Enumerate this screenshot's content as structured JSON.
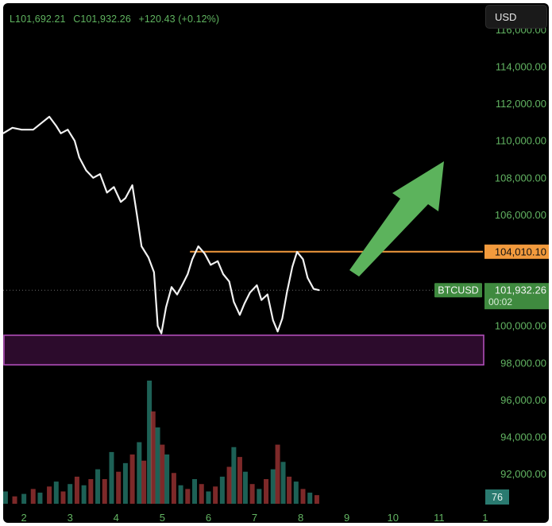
{
  "header": {
    "low": "L101,692.21",
    "close": "C101,932.26",
    "change": "+120.43 (+0.12%)"
  },
  "currency_button": "USD",
  "colors": {
    "background": "#000000",
    "price_line": "#f2f2f2",
    "axis_text": "#62b462",
    "resistance": "#f29a3d",
    "support_zone_fill": "#2c0b2c",
    "support_zone_border": "#b04db8",
    "arrow": "#5cb35c",
    "volume_up": "#2a8a7a",
    "volume_down": "#b23a3a"
  },
  "chart_data": {
    "type": "line",
    "symbol": "BTCUSD",
    "y_axis": {
      "min": 90400,
      "max": 117000,
      "ticks": [
        116000,
        114000,
        112000,
        110000,
        108000,
        106000,
        100000,
        98000,
        96000,
        94000,
        92000
      ],
      "tick_labels": [
        "116,000.00",
        "114,000.00",
        "112,000.00",
        "110,000.00",
        "108,000.00",
        "106,000.00",
        "100,000.00",
        "98,000.00",
        "96,000.00",
        "94,000.00",
        "92,000.00"
      ]
    },
    "x_axis": {
      "min": 1.55,
      "max": 11.95,
      "ticks": [
        2,
        3,
        4,
        5,
        6,
        7,
        8,
        9,
        10,
        11,
        1
      ],
      "tick_positions": [
        2,
        3,
        4,
        5,
        6,
        7,
        8,
        9,
        10,
        11,
        12
      ]
    },
    "price": [
      [
        1.55,
        110400
      ],
      [
        1.75,
        110700
      ],
      [
        1.95,
        110600
      ],
      [
        2.2,
        110600
      ],
      [
        2.35,
        110900
      ],
      [
        2.55,
        111300
      ],
      [
        2.7,
        110800
      ],
      [
        2.8,
        110400
      ],
      [
        2.95,
        110600
      ],
      [
        3.1,
        110000
      ],
      [
        3.2,
        109100
      ],
      [
        3.35,
        108400
      ],
      [
        3.5,
        108000
      ],
      [
        3.65,
        108200
      ],
      [
        3.8,
        107200
      ],
      [
        3.95,
        107500
      ],
      [
        4.1,
        106700
      ],
      [
        4.2,
        106900
      ],
      [
        4.35,
        107600
      ],
      [
        4.45,
        106000
      ],
      [
        4.55,
        104300
      ],
      [
        4.7,
        103700
      ],
      [
        4.82,
        102900
      ],
      [
        4.9,
        100000
      ],
      [
        4.98,
        99600
      ],
      [
        5.08,
        101000
      ],
      [
        5.2,
        102100
      ],
      [
        5.32,
        101700
      ],
      [
        5.45,
        102300
      ],
      [
        5.55,
        102800
      ],
      [
        5.65,
        103600
      ],
      [
        5.78,
        104300
      ],
      [
        5.92,
        103900
      ],
      [
        6.05,
        103300
      ],
      [
        6.2,
        103500
      ],
      [
        6.32,
        102800
      ],
      [
        6.45,
        102400
      ],
      [
        6.55,
        101300
      ],
      [
        6.68,
        100600
      ],
      [
        6.78,
        101200
      ],
      [
        6.9,
        101800
      ],
      [
        7.05,
        102200
      ],
      [
        7.15,
        101400
      ],
      [
        7.28,
        101700
      ],
      [
        7.4,
        100300
      ],
      [
        7.5,
        99700
      ],
      [
        7.6,
        100400
      ],
      [
        7.7,
        101800
      ],
      [
        7.82,
        103200
      ],
      [
        7.92,
        104000
      ],
      [
        8.05,
        103600
      ],
      [
        8.15,
        102600
      ],
      [
        8.28,
        102000
      ],
      [
        8.4,
        101932.26
      ]
    ],
    "resistance": {
      "value": 104010.1,
      "label": "104,010.10",
      "x_start": 5.6
    },
    "current": {
      "value": 101932.26,
      "label": "101,932.26",
      "countdown": "00:02"
    },
    "support_zone": {
      "low": 97900,
      "high": 99500
    },
    "volume_indicator_label": "76",
    "volume": [
      {
        "x": 1.6,
        "v": 0.1,
        "up": true
      },
      {
        "x": 1.8,
        "v": 0.06,
        "up": false
      },
      {
        "x": 2.0,
        "v": 0.08,
        "up": true
      },
      {
        "x": 2.2,
        "v": 0.12,
        "up": false
      },
      {
        "x": 2.35,
        "v": 0.09,
        "up": true
      },
      {
        "x": 2.55,
        "v": 0.14,
        "up": false
      },
      {
        "x": 2.7,
        "v": 0.18,
        "up": true
      },
      {
        "x": 2.85,
        "v": 0.1,
        "up": false
      },
      {
        "x": 3.0,
        "v": 0.16,
        "up": true
      },
      {
        "x": 3.15,
        "v": 0.22,
        "up": false
      },
      {
        "x": 3.3,
        "v": 0.15,
        "up": true
      },
      {
        "x": 3.45,
        "v": 0.2,
        "up": false
      },
      {
        "x": 3.6,
        "v": 0.28,
        "up": true
      },
      {
        "x": 3.75,
        "v": 0.2,
        "up": false
      },
      {
        "x": 3.9,
        "v": 0.42,
        "up": true
      },
      {
        "x": 4.05,
        "v": 0.26,
        "up": false
      },
      {
        "x": 4.2,
        "v": 0.33,
        "up": true
      },
      {
        "x": 4.35,
        "v": 0.4,
        "up": false
      },
      {
        "x": 4.5,
        "v": 0.5,
        "up": true
      },
      {
        "x": 4.6,
        "v": 0.35,
        "up": false
      },
      {
        "x": 4.72,
        "v": 1.0,
        "up": true
      },
      {
        "x": 4.8,
        "v": 0.75,
        "up": false
      },
      {
        "x": 4.9,
        "v": 0.62,
        "up": true
      },
      {
        "x": 5.0,
        "v": 0.48,
        "up": false
      },
      {
        "x": 5.1,
        "v": 0.4,
        "up": true
      },
      {
        "x": 5.25,
        "v": 0.25,
        "up": false
      },
      {
        "x": 5.4,
        "v": 0.15,
        "up": true
      },
      {
        "x": 5.55,
        "v": 0.12,
        "up": false
      },
      {
        "x": 5.7,
        "v": 0.2,
        "up": true
      },
      {
        "x": 5.85,
        "v": 0.16,
        "up": false
      },
      {
        "x": 6.0,
        "v": 0.1,
        "up": true
      },
      {
        "x": 6.15,
        "v": 0.14,
        "up": false
      },
      {
        "x": 6.3,
        "v": 0.22,
        "up": true
      },
      {
        "x": 6.45,
        "v": 0.3,
        "up": false
      },
      {
        "x": 6.55,
        "v": 0.46,
        "up": true
      },
      {
        "x": 6.68,
        "v": 0.38,
        "up": false
      },
      {
        "x": 6.8,
        "v": 0.26,
        "up": true
      },
      {
        "x": 6.95,
        "v": 0.16,
        "up": false
      },
      {
        "x": 7.1,
        "v": 0.12,
        "up": true
      },
      {
        "x": 7.25,
        "v": 0.2,
        "up": false
      },
      {
        "x": 7.4,
        "v": 0.28,
        "up": true
      },
      {
        "x": 7.5,
        "v": 0.48,
        "up": false
      },
      {
        "x": 7.62,
        "v": 0.34,
        "up": true
      },
      {
        "x": 7.75,
        "v": 0.22,
        "up": false
      },
      {
        "x": 7.9,
        "v": 0.18,
        "up": true
      },
      {
        "x": 8.05,
        "v": 0.12,
        "up": false
      },
      {
        "x": 8.2,
        "v": 0.09,
        "up": true
      },
      {
        "x": 8.35,
        "v": 0.07,
        "up": false
      }
    ]
  }
}
